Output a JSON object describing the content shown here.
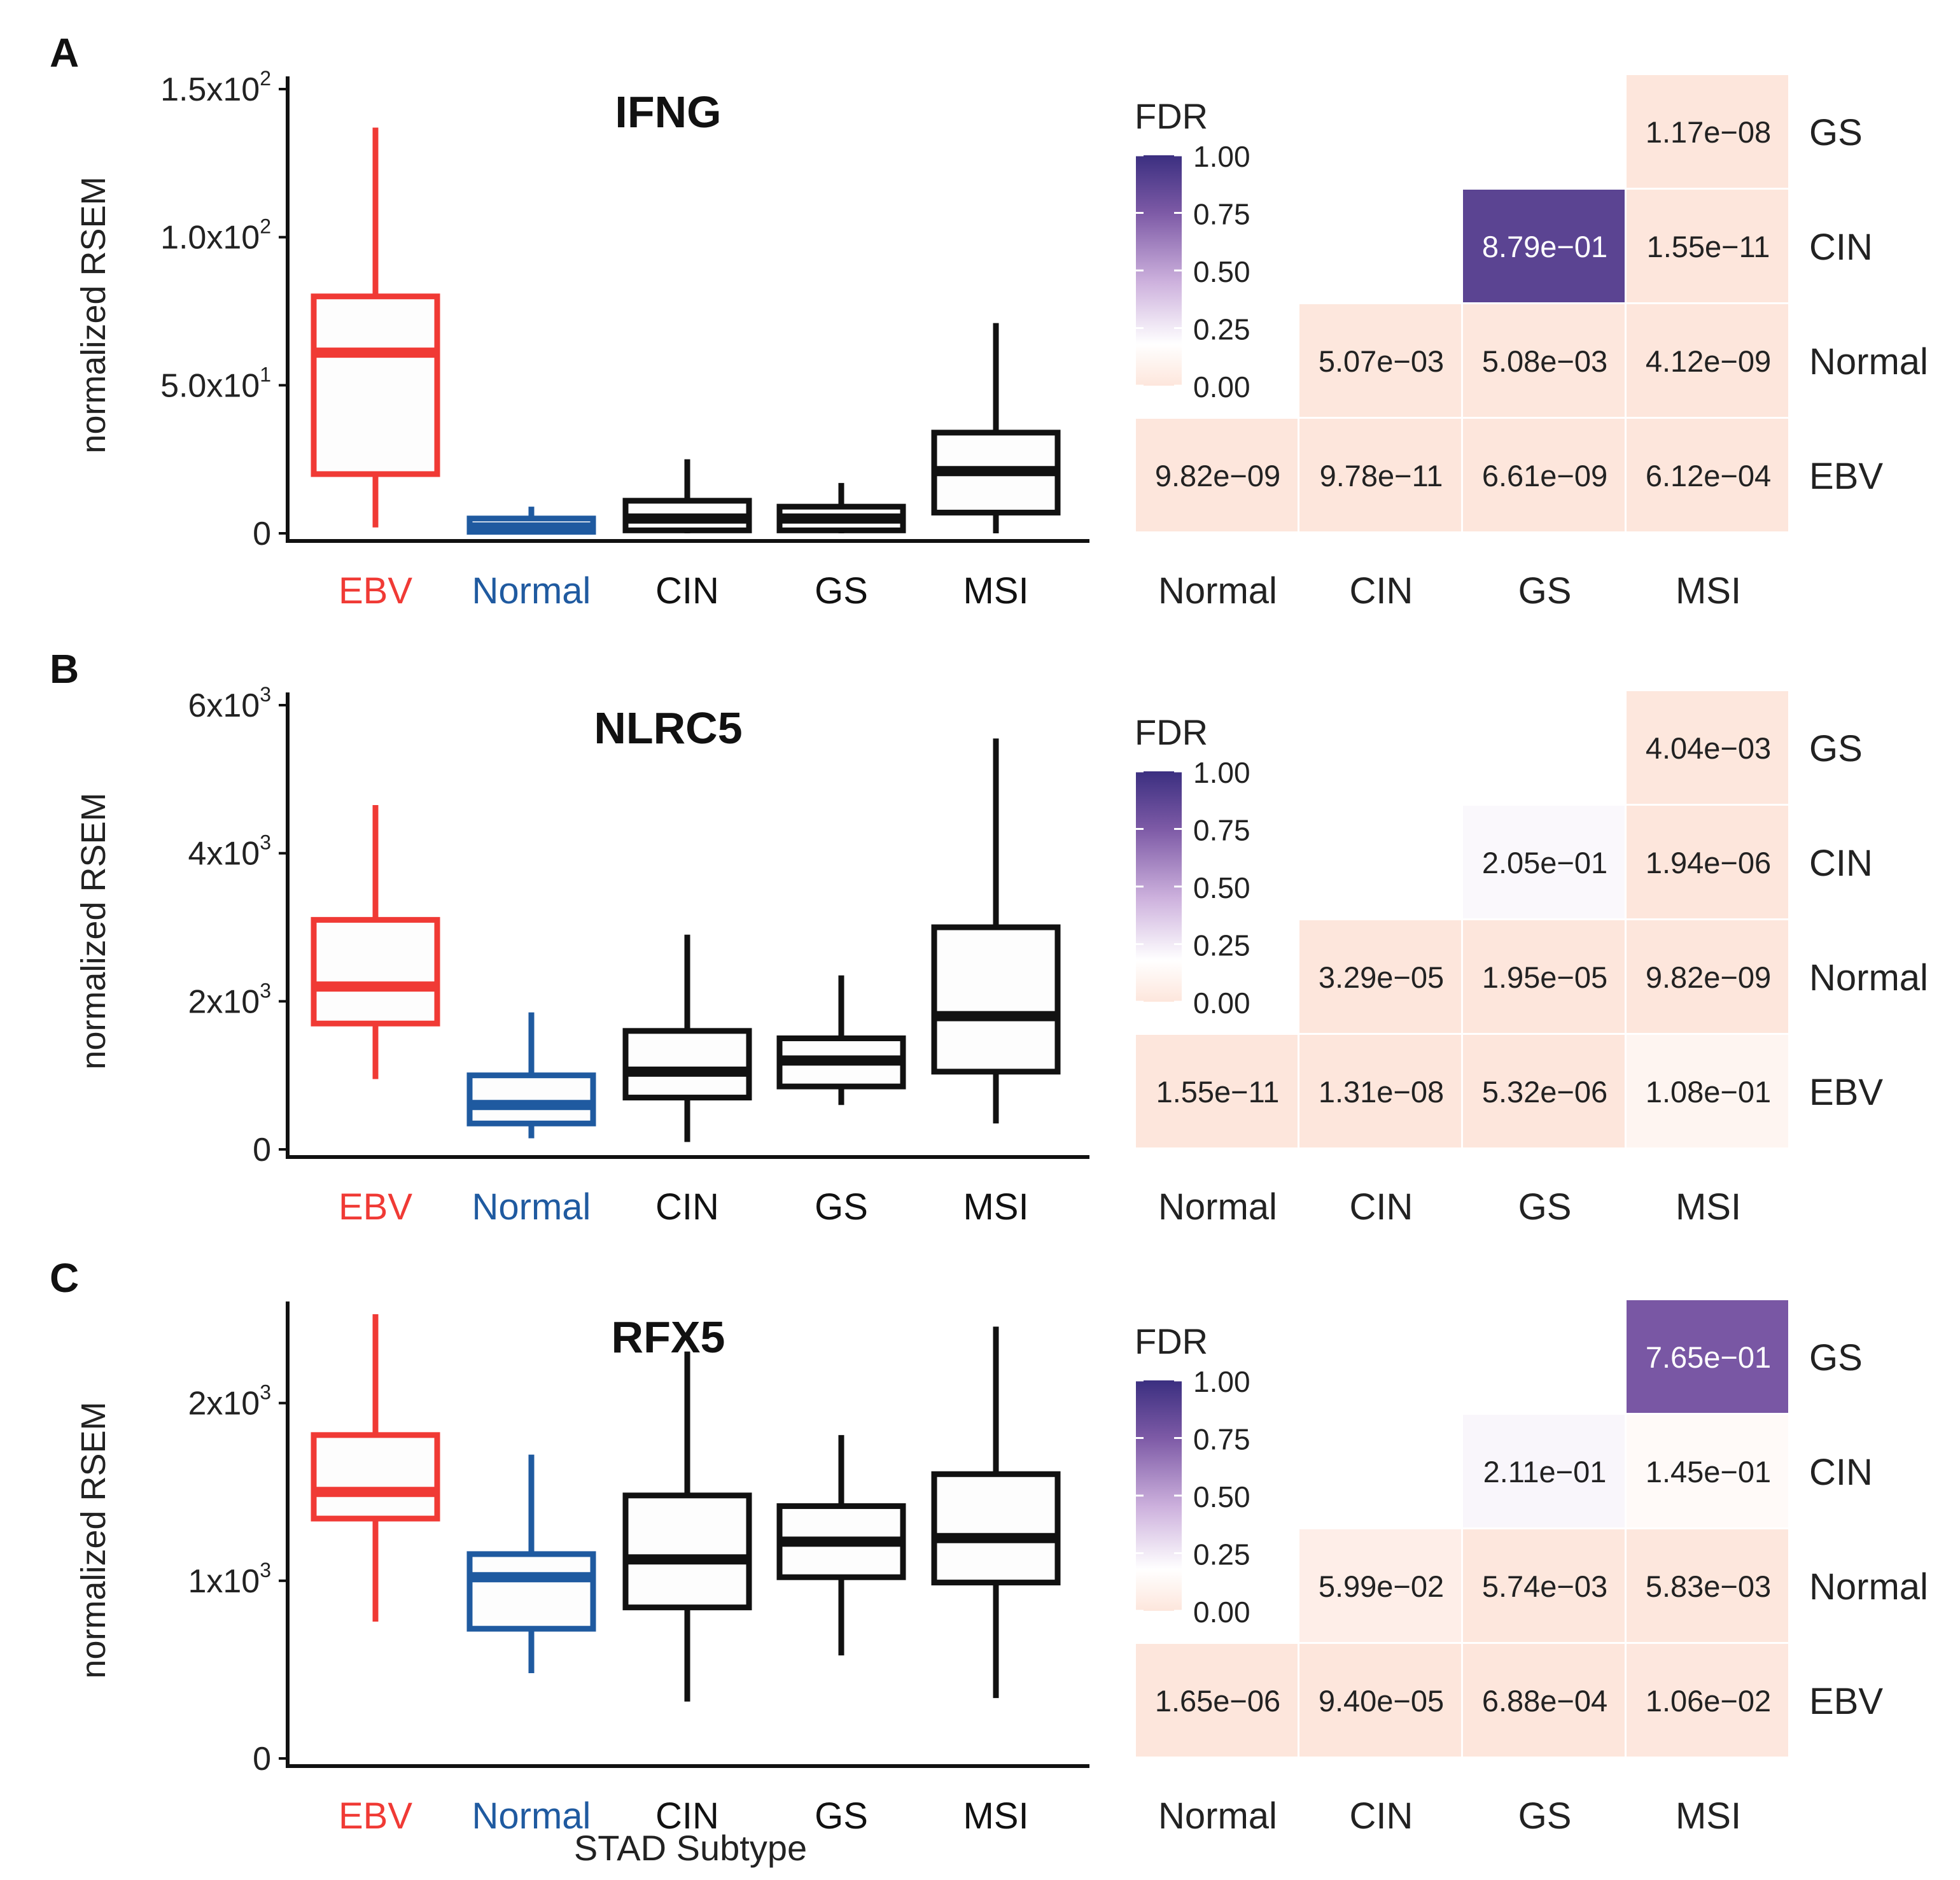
{
  "figure": {
    "shared_xlabel": "STAD Subtype",
    "colors": {
      "ebv": "#f03a35",
      "normal": "#1f5aa0",
      "other": "#111111",
      "heat_low": "#fde6dc",
      "heat_mid": "#ffffff",
      "heat_high": "#3b2f80"
    }
  },
  "chart_data": [
    {
      "panel_label": "A",
      "type": "box",
      "title": "IFNG",
      "ylabel": "normalized RSEM",
      "ylim": [
        0,
        150
      ],
      "yticks": [
        {
          "value": 0,
          "base": "0",
          "exp": ""
        },
        {
          "value": 50,
          "base": "5.0x10",
          "exp": "1"
        },
        {
          "value": 100,
          "base": "1.0x10",
          "exp": "2"
        },
        {
          "value": 150,
          "base": "1.5x10",
          "exp": "2"
        }
      ],
      "categories": [
        "EBV",
        "Normal",
        "CIN",
        "GS",
        "MSI"
      ],
      "boxes": [
        {
          "name": "EBV",
          "min": 2,
          "q1": 20,
          "median": 61,
          "q3": 80,
          "max": 137
        },
        {
          "name": "Normal",
          "min": 0,
          "q1": 0.5,
          "median": 2,
          "q3": 5,
          "max": 9
        },
        {
          "name": "CIN",
          "min": 0,
          "q1": 1,
          "median": 5,
          "q3": 11,
          "max": 25
        },
        {
          "name": "GS",
          "min": 0,
          "q1": 1,
          "median": 5,
          "q3": 9,
          "max": 17
        },
        {
          "name": "MSI",
          "min": 0,
          "q1": 7,
          "median": 21,
          "q3": 34,
          "max": 71
        }
      ],
      "heatmap": {
        "legend_title": "FDR",
        "legend_ticks": [
          "1.00",
          "0.75",
          "0.50",
          "0.25",
          "0.00"
        ],
        "x_labels": [
          "Normal",
          "CIN",
          "GS",
          "MSI"
        ],
        "y_labels": [
          "GS",
          "CIN",
          "Normal",
          "EBV"
        ],
        "cells": [
          {
            "row": 0,
            "col": 3,
            "label": "1.17e−08",
            "value": 1.17e-08
          },
          {
            "row": 1,
            "col": 2,
            "label": "8.79e−01",
            "value": 0.879
          },
          {
            "row": 1,
            "col": 3,
            "label": "1.55e−11",
            "value": 1.55e-11
          },
          {
            "row": 2,
            "col": 1,
            "label": "5.07e−03",
            "value": 0.00507
          },
          {
            "row": 2,
            "col": 2,
            "label": "5.08e−03",
            "value": 0.00508
          },
          {
            "row": 2,
            "col": 3,
            "label": "4.12e−09",
            "value": 4.12e-09
          },
          {
            "row": 3,
            "col": 0,
            "label": "9.82e−09",
            "value": 9.82e-09
          },
          {
            "row": 3,
            "col": 1,
            "label": "9.78e−11",
            "value": 9.78e-11
          },
          {
            "row": 3,
            "col": 2,
            "label": "6.61e−09",
            "value": 6.61e-09
          },
          {
            "row": 3,
            "col": 3,
            "label": "6.12e−04",
            "value": 0.000612
          }
        ]
      }
    },
    {
      "panel_label": "B",
      "type": "box",
      "title": "NLRC5",
      "ylabel": "normalized RSEM",
      "ylim": [
        0,
        6000
      ],
      "yticks": [
        {
          "value": 0,
          "base": "0",
          "exp": ""
        },
        {
          "value": 2000,
          "base": "2x10",
          "exp": "3"
        },
        {
          "value": 4000,
          "base": "4x10",
          "exp": "3"
        },
        {
          "value": 6000,
          "base": "6x10",
          "exp": "3"
        }
      ],
      "categories": [
        "EBV",
        "Normal",
        "CIN",
        "GS",
        "MSI"
      ],
      "boxes": [
        {
          "name": "EBV",
          "min": 950,
          "q1": 1700,
          "median": 2200,
          "q3": 3100,
          "max": 4650
        },
        {
          "name": "Normal",
          "min": 150,
          "q1": 350,
          "median": 600,
          "q3": 1000,
          "max": 1850
        },
        {
          "name": "CIN",
          "min": 100,
          "q1": 700,
          "median": 1050,
          "q3": 1600,
          "max": 2900
        },
        {
          "name": "GS",
          "min": 600,
          "q1": 850,
          "median": 1200,
          "q3": 1500,
          "max": 2350
        },
        {
          "name": "MSI",
          "min": 350,
          "q1": 1050,
          "median": 1800,
          "q3": 3000,
          "max": 5550
        }
      ],
      "heatmap": {
        "legend_title": "FDR",
        "legend_ticks": [
          "1.00",
          "0.75",
          "0.50",
          "0.25",
          "0.00"
        ],
        "x_labels": [
          "Normal",
          "CIN",
          "GS",
          "MSI"
        ],
        "y_labels": [
          "GS",
          "CIN",
          "Normal",
          "EBV"
        ],
        "cells": [
          {
            "row": 0,
            "col": 3,
            "label": "4.04e−03",
            "value": 0.00404
          },
          {
            "row": 1,
            "col": 2,
            "label": "2.05e−01",
            "value": 0.205
          },
          {
            "row": 1,
            "col": 3,
            "label": "1.94e−06",
            "value": 1.94e-06
          },
          {
            "row": 2,
            "col": 1,
            "label": "3.29e−05",
            "value": 3.29e-05
          },
          {
            "row": 2,
            "col": 2,
            "label": "1.95e−05",
            "value": 1.95e-05
          },
          {
            "row": 2,
            "col": 3,
            "label": "9.82e−09",
            "value": 9.82e-09
          },
          {
            "row": 3,
            "col": 0,
            "label": "1.55e−11",
            "value": 1.55e-11
          },
          {
            "row": 3,
            "col": 1,
            "label": "1.31e−08",
            "value": 1.31e-08
          },
          {
            "row": 3,
            "col": 2,
            "label": "5.32e−06",
            "value": 5.32e-06
          },
          {
            "row": 3,
            "col": 3,
            "label": "1.08e−01",
            "value": 0.108
          }
        ]
      }
    },
    {
      "panel_label": "C",
      "type": "box",
      "title": "RFX5",
      "ylabel": "normalized RSEM",
      "ylim": [
        0,
        2500
      ],
      "yticks": [
        {
          "value": 0,
          "base": "0",
          "exp": ""
        },
        {
          "value": 1000,
          "base": "1x10",
          "exp": "3"
        },
        {
          "value": 2000,
          "base": "2x10",
          "exp": "3"
        }
      ],
      "categories": [
        "EBV",
        "Normal",
        "CIN",
        "GS",
        "MSI"
      ],
      "boxes": [
        {
          "name": "EBV",
          "min": 770,
          "q1": 1350,
          "median": 1500,
          "q3": 1820,
          "max": 2500
        },
        {
          "name": "Normal",
          "min": 480,
          "q1": 730,
          "median": 1020,
          "q3": 1150,
          "max": 1710
        },
        {
          "name": "CIN",
          "min": 320,
          "q1": 850,
          "median": 1120,
          "q3": 1480,
          "max": 2290
        },
        {
          "name": "GS",
          "min": 580,
          "q1": 1020,
          "median": 1220,
          "q3": 1420,
          "max": 1820
        },
        {
          "name": "MSI",
          "min": 340,
          "q1": 990,
          "median": 1240,
          "q3": 1600,
          "max": 2430
        }
      ],
      "heatmap": {
        "legend_title": "FDR",
        "legend_ticks": [
          "1.00",
          "0.75",
          "0.50",
          "0.25",
          "0.00"
        ],
        "x_labels": [
          "Normal",
          "CIN",
          "GS",
          "MSI"
        ],
        "y_labels": [
          "GS",
          "CIN",
          "Normal",
          "EBV"
        ],
        "cells": [
          {
            "row": 0,
            "col": 3,
            "label": "7.65e−01",
            "value": 0.765
          },
          {
            "row": 1,
            "col": 2,
            "label": "2.11e−01",
            "value": 0.211
          },
          {
            "row": 1,
            "col": 3,
            "label": "1.45e−01",
            "value": 0.145
          },
          {
            "row": 2,
            "col": 1,
            "label": "5.99e−02",
            "value": 0.0599
          },
          {
            "row": 2,
            "col": 2,
            "label": "5.74e−03",
            "value": 0.00574
          },
          {
            "row": 2,
            "col": 3,
            "label": "5.83e−03",
            "value": 0.00583
          },
          {
            "row": 3,
            "col": 0,
            "label": "1.65e−06",
            "value": 1.65e-06
          },
          {
            "row": 3,
            "col": 1,
            "label": "9.40e−05",
            "value": 9.4e-05
          },
          {
            "row": 3,
            "col": 2,
            "label": "6.88e−04",
            "value": 0.000688
          },
          {
            "row": 3,
            "col": 3,
            "label": "1.06e−02",
            "value": 0.0106
          }
        ]
      }
    }
  ]
}
